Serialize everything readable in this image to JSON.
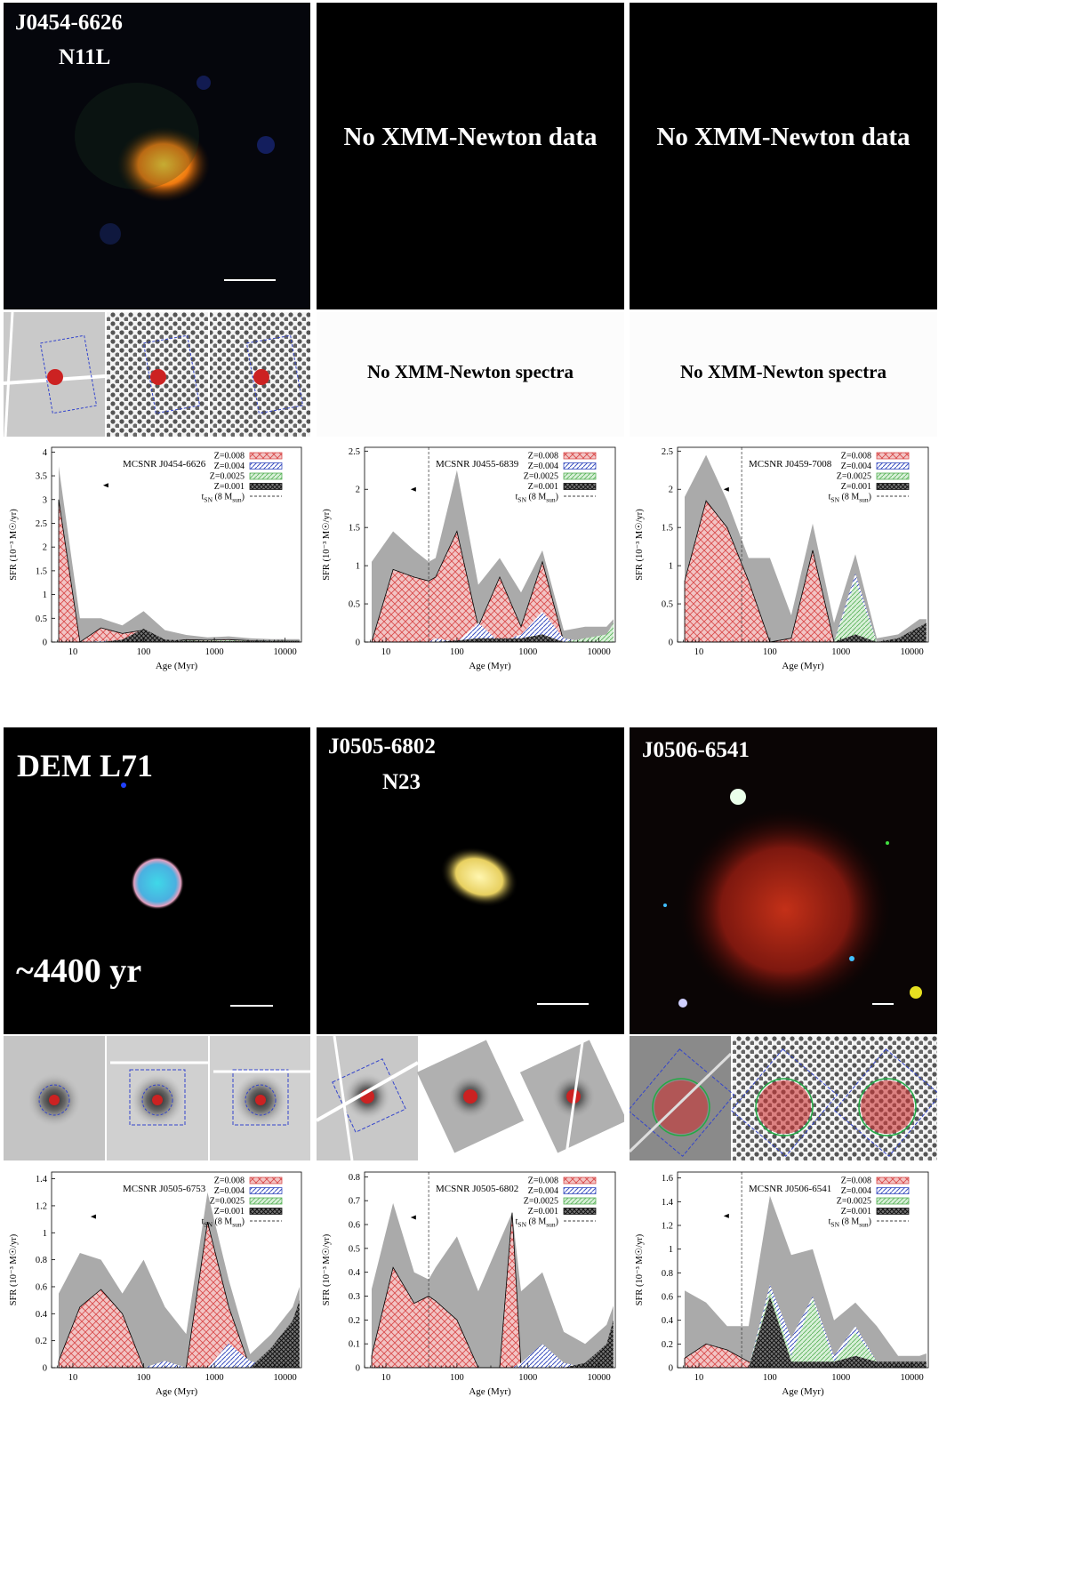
{
  "rows": [
    {
      "images": [
        {
          "labels": [
            "J0454-6626",
            "N11L"
          ],
          "scalebar": true,
          "style": "orange"
        },
        {
          "message": "No XMM-Newton data"
        },
        {
          "message": "No XMM-Newton data"
        }
      ],
      "spectra": [
        {
          "style": "grey-sparse"
        },
        {
          "message": "No XMM-Newton spectra"
        },
        {
          "message": "No XMM-Newton spectra"
        }
      ]
    },
    {
      "images": [
        {
          "labels": [
            "DEM L71"
          ],
          "age_label": "~4400 yr",
          "scalebar": true,
          "style": "cyan-ring"
        },
        {
          "labels": [
            "J0505-6802",
            "N23"
          ],
          "scalebar": true,
          "style": "yellow"
        },
        {
          "labels": [
            "J0506-6541"
          ],
          "scalebar": true,
          "style": "red-diffuse"
        }
      ],
      "spectra": [
        {
          "style": "grey-center"
        },
        {
          "style": "grey-center-white"
        },
        {
          "style": "dots-red"
        }
      ]
    }
  ],
  "legend": {
    "entries": [
      "Z=0.008",
      "Z=0.004",
      "Z=0.0025",
      "Z=0.001"
    ],
    "tsn_label": "t",
    "tsn_sub": "SN",
    "tsn_paren": "(8 M",
    "tsn_sun": "sun",
    "tsn_close": ")"
  },
  "colors": {
    "z008": "#d94c4c",
    "z004": "#3a4fc0",
    "z0025": "#55b055",
    "z001": "#111111",
    "total": "#aaaaaa"
  },
  "chart_data": [
    {
      "type": "area",
      "title": "MCSNR J0454-6626",
      "xlabel": "Age (Myr)",
      "ylabel": "SFR (10⁻³ M☉/yr)",
      "xscale": "log",
      "xlim": [
        5,
        17000
      ],
      "ylim": [
        0,
        4.1
      ],
      "yticks": [
        0,
        0.5,
        1,
        1.5,
        2,
        2.5,
        3,
        3.5,
        4
      ],
      "xticks": [
        10,
        100,
        1000,
        10000
      ],
      "tsn": null,
      "arrow_at": [
        30,
        3.3
      ],
      "x": [
        6.3,
        12.6,
        25,
        50,
        100,
        200,
        400,
        800,
        1600,
        3200,
        6400,
        12800,
        16000
      ],
      "series": [
        {
          "name": "total",
          "values": [
            3.7,
            0.5,
            0.5,
            0.35,
            0.65,
            0.25,
            0.15,
            0.1,
            0.12,
            0.08,
            0.06,
            0.06,
            0.06
          ]
        },
        {
          "name": "Z=0.008",
          "values": [
            3.0,
            0.0,
            0.3,
            0.18,
            0.25,
            0.0,
            0.05,
            0.04,
            0.05,
            0.03,
            0.02,
            0.02,
            0.02
          ]
        },
        {
          "name": "Z=0.004",
          "values": [
            0.0,
            0.0,
            0.02,
            0.02,
            0.05,
            0.03,
            0.03,
            0.02,
            0.03,
            0.02,
            0.02,
            0.01,
            0.01
          ]
        },
        {
          "name": "Z=0.0025",
          "values": [
            0.0,
            0.0,
            0.0,
            0.01,
            0.02,
            0.02,
            0.04,
            0.03,
            0.04,
            0.02,
            0.02,
            0.02,
            0.02
          ]
        },
        {
          "name": "Z=0.001",
          "values": [
            0.0,
            0.0,
            0.0,
            0.05,
            0.28,
            0.05,
            0.03,
            0.02,
            0.02,
            0.02,
            0.02,
            0.02,
            0.02
          ]
        }
      ]
    },
    {
      "type": "area",
      "title": "MCSNR J0455-6839",
      "xlabel": "Age (Myr)",
      "ylabel": "SFR (10⁻³ M☉/yr)",
      "xscale": "log",
      "xlim": [
        5,
        17000
      ],
      "ylim": [
        0,
        2.55
      ],
      "yticks": [
        0,
        0.5,
        1,
        1.5,
        2,
        2.5
      ],
      "xticks": [
        10,
        100,
        1000,
        10000
      ],
      "tsn": 40,
      "arrow_at": [
        25,
        2.0
      ],
      "x": [
        6.3,
        12.6,
        25,
        40,
        50,
        100,
        200,
        400,
        800,
        1600,
        3200,
        6400,
        12800,
        16000
      ],
      "series": [
        {
          "name": "total",
          "values": [
            1.05,
            1.45,
            1.2,
            1.05,
            1.1,
            2.25,
            0.75,
            1.1,
            0.65,
            1.2,
            0.15,
            0.2,
            0.2,
            0.3
          ]
        },
        {
          "name": "Z=0.008",
          "values": [
            0.0,
            0.95,
            0.85,
            0.8,
            0.85,
            1.45,
            0.2,
            0.85,
            0.2,
            1.05,
            0.0,
            0.0,
            0.0,
            0.0
          ]
        },
        {
          "name": "Z=0.004",
          "values": [
            0.0,
            0.0,
            0.0,
            0.0,
            0.05,
            0.0,
            0.25,
            0.0,
            0.1,
            0.4,
            0.05,
            0.0,
            0.0,
            0.0
          ]
        },
        {
          "name": "Z=0.0025",
          "values": [
            0.0,
            0.0,
            0.0,
            0.0,
            0.0,
            0.0,
            0.0,
            0.0,
            0.0,
            0.0,
            0.0,
            0.05,
            0.1,
            0.25
          ]
        },
        {
          "name": "Z=0.001",
          "values": [
            0.0,
            0.0,
            0.0,
            0.0,
            0.0,
            0.02,
            0.05,
            0.05,
            0.05,
            0.1,
            0.0,
            0.0,
            0.0,
            0.0
          ]
        }
      ]
    },
    {
      "type": "area",
      "title": "MCSNR J0459-7008",
      "xlabel": "Age (Myr)",
      "ylabel": "SFR (10⁻³ M☉/yr)",
      "xscale": "log",
      "xlim": [
        5,
        17000
      ],
      "ylim": [
        0,
        2.55
      ],
      "yticks": [
        0,
        0.5,
        1,
        1.5,
        2,
        2.5
      ],
      "xticks": [
        10,
        100,
        1000,
        10000
      ],
      "tsn": 40,
      "arrow_at": [
        25,
        2.0
      ],
      "x": [
        6.3,
        12.6,
        25,
        50,
        100,
        200,
        400,
        800,
        1600,
        3200,
        6400,
        12800,
        16000
      ],
      "series": [
        {
          "name": "total",
          "values": [
            1.9,
            2.45,
            1.85,
            1.1,
            1.1,
            0.35,
            1.55,
            0.25,
            1.15,
            0.05,
            0.1,
            0.3,
            0.3
          ]
        },
        {
          "name": "Z=0.008",
          "values": [
            0.8,
            1.85,
            1.5,
            0.8,
            0.0,
            0.05,
            1.2,
            0.0,
            0.0,
            0.0,
            0.0,
            0.0,
            0.0
          ]
        },
        {
          "name": "Z=0.004",
          "values": [
            0.0,
            0.0,
            0.0,
            0.0,
            0.0,
            0.0,
            0.0,
            0.0,
            0.9,
            0.0,
            0.0,
            0.0,
            0.0
          ]
        },
        {
          "name": "Z=0.0025",
          "values": [
            0.0,
            0.0,
            0.0,
            0.0,
            0.0,
            0.0,
            0.0,
            0.0,
            0.8,
            0.0,
            0.0,
            0.0,
            0.0
          ]
        },
        {
          "name": "Z=0.001",
          "values": [
            0.0,
            0.0,
            0.0,
            0.0,
            0.0,
            0.0,
            0.0,
            0.0,
            0.1,
            0.0,
            0.05,
            0.2,
            0.25
          ]
        }
      ]
    },
    {
      "type": "area",
      "title": "MCSNR J0505-6753",
      "xlabel": "Age (Myr)",
      "ylabel": "SFR (10⁻³ M☉/yr)",
      "xscale": "log",
      "xlim": [
        5,
        17000
      ],
      "ylim": [
        0,
        1.45
      ],
      "yticks": [
        0,
        0.2,
        0.4,
        0.6,
        0.8,
        1,
        1.2,
        1.4
      ],
      "xticks": [
        10,
        100,
        1000,
        10000
      ],
      "tsn": null,
      "arrow_at": [
        20,
        1.12
      ],
      "x": [
        6.3,
        12.6,
        25,
        50,
        100,
        200,
        400,
        800,
        1600,
        3200,
        6400,
        12800,
        16000
      ],
      "series": [
        {
          "name": "total",
          "values": [
            0.55,
            0.85,
            0.8,
            0.55,
            0.8,
            0.45,
            0.25,
            1.3,
            0.65,
            0.1,
            0.25,
            0.45,
            0.6
          ]
        },
        {
          "name": "Z=0.008",
          "values": [
            0.05,
            0.45,
            0.58,
            0.4,
            0.0,
            0.0,
            0.0,
            1.08,
            0.45,
            0.0,
            0.0,
            0.0,
            0.0
          ]
        },
        {
          "name": "Z=0.004",
          "values": [
            0.0,
            0.0,
            0.0,
            0.0,
            0.0,
            0.05,
            0.0,
            0.0,
            0.18,
            0.05,
            0.0,
            0.0,
            0.0
          ]
        },
        {
          "name": "Z=0.0025",
          "values": [
            0.0,
            0.0,
            0.0,
            0.0,
            0.0,
            0.0,
            0.0,
            0.0,
            0.0,
            0.0,
            0.0,
            0.0,
            0.0
          ]
        },
        {
          "name": "Z=0.001",
          "values": [
            0.0,
            0.0,
            0.0,
            0.0,
            0.0,
            0.0,
            0.0,
            0.0,
            0.0,
            0.0,
            0.15,
            0.35,
            0.5
          ]
        }
      ]
    },
    {
      "type": "area",
      "title": "MCSNR J0505-6802",
      "xlabel": "Age (Myr)",
      "ylabel": "SFR (10⁻³ M☉/yr)",
      "xscale": "log",
      "xlim": [
        5,
        17000
      ],
      "ylim": [
        0,
        0.82
      ],
      "yticks": [
        0,
        0.1,
        0.2,
        0.3,
        0.4,
        0.5,
        0.6,
        0.7,
        0.8
      ],
      "xticks": [
        10,
        100,
        1000,
        10000
      ],
      "tsn": 40,
      "arrow_at": [
        25,
        0.63
      ],
      "x": [
        6.3,
        12.6,
        25,
        40,
        50,
        100,
        200,
        400,
        600,
        800,
        1600,
        3200,
        6400,
        12800,
        16000
      ],
      "series": [
        {
          "name": "total",
          "values": [
            0.33,
            0.69,
            0.4,
            0.37,
            0.42,
            0.55,
            0.32,
            0.53,
            0.65,
            0.32,
            0.4,
            0.15,
            0.1,
            0.18,
            0.26
          ]
        },
        {
          "name": "Z=0.008",
          "values": [
            0.05,
            0.42,
            0.27,
            0.3,
            0.28,
            0.2,
            0.0,
            0.0,
            0.65,
            0.0,
            0.0,
            0.0,
            0.0,
            0.0,
            0.0
          ]
        },
        {
          "name": "Z=0.004",
          "values": [
            0.0,
            0.0,
            0.0,
            0.0,
            0.0,
            0.0,
            0.0,
            0.0,
            0.0,
            0.02,
            0.1,
            0.02,
            0.0,
            0.0,
            0.0
          ]
        },
        {
          "name": "Z=0.0025",
          "values": [
            0.0,
            0.0,
            0.0,
            0.0,
            0.0,
            0.0,
            0.0,
            0.0,
            0.0,
            0.0,
            0.0,
            0.0,
            0.0,
            0.0,
            0.0
          ]
        },
        {
          "name": "Z=0.001",
          "values": [
            0.0,
            0.0,
            0.0,
            0.0,
            0.0,
            0.0,
            0.0,
            0.0,
            0.0,
            0.0,
            0.0,
            0.0,
            0.02,
            0.1,
            0.2
          ]
        }
      ]
    },
    {
      "type": "area",
      "title": "MCSNR J0506-6541",
      "xlabel": "Age (Myr)",
      "ylabel": "SFR (10⁻³ M☉/yr)",
      "xscale": "log",
      "xlim": [
        5,
        17000
      ],
      "ylim": [
        0,
        1.65
      ],
      "yticks": [
        0,
        0.2,
        0.4,
        0.6,
        0.8,
        1,
        1.2,
        1.4,
        1.6
      ],
      "xticks": [
        10,
        100,
        1000,
        10000
      ],
      "tsn": 40,
      "arrow_at": [
        25,
        1.28
      ],
      "x": [
        6.3,
        12.6,
        25,
        50,
        100,
        200,
        400,
        800,
        1600,
        3200,
        6400,
        12800,
        16000
      ],
      "series": [
        {
          "name": "total",
          "values": [
            0.65,
            0.55,
            0.35,
            0.35,
            1.45,
            0.95,
            1.0,
            0.4,
            0.55,
            0.35,
            0.1,
            0.1,
            0.12
          ]
        },
        {
          "name": "Z=0.008",
          "values": [
            0.08,
            0.2,
            0.15,
            0.05,
            0.0,
            0.0,
            0.0,
            0.0,
            0.0,
            0.0,
            0.0,
            0.0,
            0.0
          ]
        },
        {
          "name": "Z=0.004",
          "values": [
            0.0,
            0.0,
            0.0,
            0.0,
            0.7,
            0.25,
            0.6,
            0.1,
            0.35,
            0.05,
            0.0,
            0.0,
            0.0
          ]
        },
        {
          "name": "Z=0.0025",
          "values": [
            0.0,
            0.0,
            0.0,
            0.0,
            0.65,
            0.1,
            0.58,
            0.05,
            0.3,
            0.05,
            0.0,
            0.0,
            0.0
          ]
        },
        {
          "name": "Z=0.001",
          "values": [
            0.0,
            0.0,
            0.0,
            0.0,
            0.6,
            0.05,
            0.05,
            0.05,
            0.1,
            0.05,
            0.05,
            0.05,
            0.05
          ]
        }
      ]
    }
  ]
}
